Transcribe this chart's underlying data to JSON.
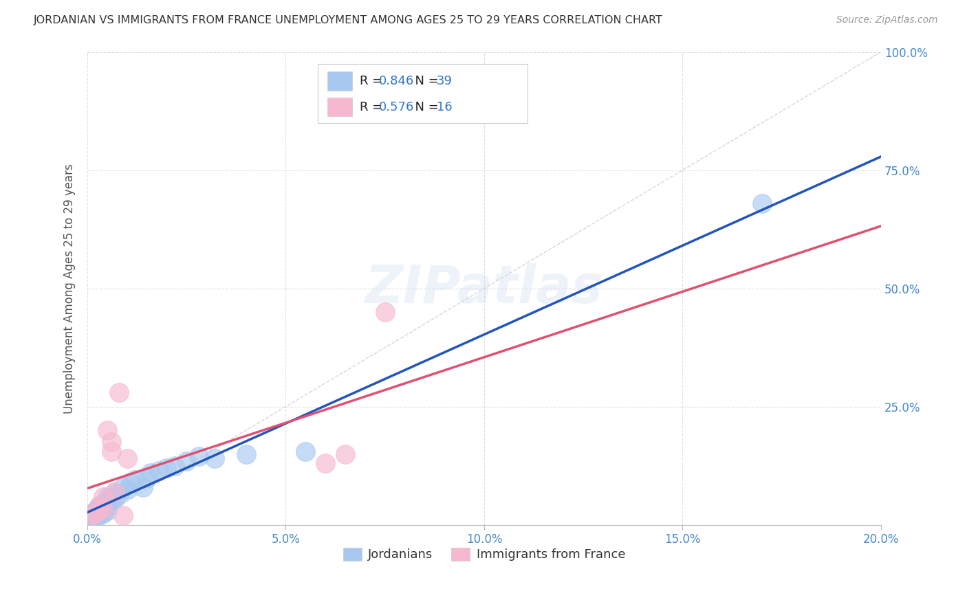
{
  "title": "JORDANIAN VS IMMIGRANTS FROM FRANCE UNEMPLOYMENT AMONG AGES 25 TO 29 YEARS CORRELATION CHART",
  "source": "Source: ZipAtlas.com",
  "ylabel": "Unemployment Among Ages 25 to 29 years",
  "xlabel": "",
  "xlim": [
    0.0,
    0.2
  ],
  "ylim": [
    0.0,
    1.0
  ],
  "xtick_labels": [
    "0.0%",
    "5.0%",
    "10.0%",
    "15.0%",
    "20.0%"
  ],
  "xtick_vals": [
    0.0,
    0.05,
    0.1,
    0.15,
    0.2
  ],
  "ytick_labels": [
    "25.0%",
    "50.0%",
    "75.0%",
    "100.0%"
  ],
  "ytick_vals": [
    0.25,
    0.5,
    0.75,
    1.0
  ],
  "jordanian_color": "#A8C8F0",
  "france_color": "#F5B8D0",
  "trendline_jordan_color": "#2255BB",
  "trendline_france_color": "#E05070",
  "diagonal_color": "#CCCCCC",
  "watermark": "ZIPatlas",
  "jordanian_x": [
    0.001,
    0.001,
    0.001,
    0.002,
    0.002,
    0.002,
    0.002,
    0.003,
    0.003,
    0.003,
    0.003,
    0.003,
    0.004,
    0.004,
    0.004,
    0.005,
    0.005,
    0.005,
    0.006,
    0.006,
    0.007,
    0.007,
    0.008,
    0.009,
    0.01,
    0.011,
    0.012,
    0.014,
    0.015,
    0.016,
    0.018,
    0.02,
    0.022,
    0.025,
    0.028,
    0.032,
    0.04,
    0.055,
    0.17
  ],
  "jordanian_y": [
    0.015,
    0.02,
    0.025,
    0.015,
    0.02,
    0.025,
    0.03,
    0.02,
    0.025,
    0.03,
    0.035,
    0.04,
    0.025,
    0.035,
    0.045,
    0.03,
    0.04,
    0.06,
    0.05,
    0.06,
    0.055,
    0.07,
    0.065,
    0.08,
    0.075,
    0.09,
    0.095,
    0.08,
    0.1,
    0.11,
    0.115,
    0.12,
    0.125,
    0.135,
    0.145,
    0.14,
    0.15,
    0.155,
    0.68
  ],
  "france_x": [
    0.001,
    0.002,
    0.003,
    0.003,
    0.004,
    0.004,
    0.005,
    0.006,
    0.006,
    0.007,
    0.008,
    0.009,
    0.01,
    0.06,
    0.065,
    0.075
  ],
  "france_y": [
    0.02,
    0.025,
    0.03,
    0.04,
    0.035,
    0.06,
    0.2,
    0.155,
    0.175,
    0.07,
    0.28,
    0.02,
    0.14,
    0.13,
    0.15,
    0.45
  ],
  "background_color": "#FFFFFF",
  "grid_color": "#DDDDDD"
}
